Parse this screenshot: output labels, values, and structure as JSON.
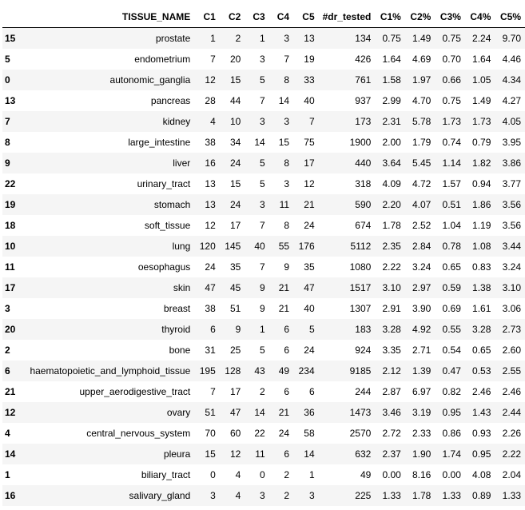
{
  "columns": [
    "TISSUE_NAME",
    "C1",
    "C2",
    "C3",
    "C4",
    "C5",
    "#dr_tested",
    "C1%",
    "C2%",
    "C3%",
    "C4%",
    "C5%"
  ],
  "rows": [
    {
      "index": "15",
      "cells": [
        "prostate",
        "1",
        "2",
        "1",
        "3",
        "13",
        "134",
        "0.75",
        "1.49",
        "0.75",
        "2.24",
        "9.70"
      ]
    },
    {
      "index": "5",
      "cells": [
        "endometrium",
        "7",
        "20",
        "3",
        "7",
        "19",
        "426",
        "1.64",
        "4.69",
        "0.70",
        "1.64",
        "4.46"
      ]
    },
    {
      "index": "0",
      "cells": [
        "autonomic_ganglia",
        "12",
        "15",
        "5",
        "8",
        "33",
        "761",
        "1.58",
        "1.97",
        "0.66",
        "1.05",
        "4.34"
      ]
    },
    {
      "index": "13",
      "cells": [
        "pancreas",
        "28",
        "44",
        "7",
        "14",
        "40",
        "937",
        "2.99",
        "4.70",
        "0.75",
        "1.49",
        "4.27"
      ]
    },
    {
      "index": "7",
      "cells": [
        "kidney",
        "4",
        "10",
        "3",
        "3",
        "7",
        "173",
        "2.31",
        "5.78",
        "1.73",
        "1.73",
        "4.05"
      ]
    },
    {
      "index": "8",
      "cells": [
        "large_intestine",
        "38",
        "34",
        "14",
        "15",
        "75",
        "1900",
        "2.00",
        "1.79",
        "0.74",
        "0.79",
        "3.95"
      ]
    },
    {
      "index": "9",
      "cells": [
        "liver",
        "16",
        "24",
        "5",
        "8",
        "17",
        "440",
        "3.64",
        "5.45",
        "1.14",
        "1.82",
        "3.86"
      ]
    },
    {
      "index": "22",
      "cells": [
        "urinary_tract",
        "13",
        "15",
        "5",
        "3",
        "12",
        "318",
        "4.09",
        "4.72",
        "1.57",
        "0.94",
        "3.77"
      ]
    },
    {
      "index": "19",
      "cells": [
        "stomach",
        "13",
        "24",
        "3",
        "11",
        "21",
        "590",
        "2.20",
        "4.07",
        "0.51",
        "1.86",
        "3.56"
      ]
    },
    {
      "index": "18",
      "cells": [
        "soft_tissue",
        "12",
        "17",
        "7",
        "8",
        "24",
        "674",
        "1.78",
        "2.52",
        "1.04",
        "1.19",
        "3.56"
      ]
    },
    {
      "index": "10",
      "cells": [
        "lung",
        "120",
        "145",
        "40",
        "55",
        "176",
        "5112",
        "2.35",
        "2.84",
        "0.78",
        "1.08",
        "3.44"
      ]
    },
    {
      "index": "11",
      "cells": [
        "oesophagus",
        "24",
        "35",
        "7",
        "9",
        "35",
        "1080",
        "2.22",
        "3.24",
        "0.65",
        "0.83",
        "3.24"
      ]
    },
    {
      "index": "17",
      "cells": [
        "skin",
        "47",
        "45",
        "9",
        "21",
        "47",
        "1517",
        "3.10",
        "2.97",
        "0.59",
        "1.38",
        "3.10"
      ]
    },
    {
      "index": "3",
      "cells": [
        "breast",
        "38",
        "51",
        "9",
        "21",
        "40",
        "1307",
        "2.91",
        "3.90",
        "0.69",
        "1.61",
        "3.06"
      ]
    },
    {
      "index": "20",
      "cells": [
        "thyroid",
        "6",
        "9",
        "1",
        "6",
        "5",
        "183",
        "3.28",
        "4.92",
        "0.55",
        "3.28",
        "2.73"
      ]
    },
    {
      "index": "2",
      "cells": [
        "bone",
        "31",
        "25",
        "5",
        "6",
        "24",
        "924",
        "3.35",
        "2.71",
        "0.54",
        "0.65",
        "2.60"
      ]
    },
    {
      "index": "6",
      "cells": [
        "haematopoietic_and_lymphoid_tissue",
        "195",
        "128",
        "43",
        "49",
        "234",
        "9185",
        "2.12",
        "1.39",
        "0.47",
        "0.53",
        "2.55"
      ]
    },
    {
      "index": "21",
      "cells": [
        "upper_aerodigestive_tract",
        "7",
        "17",
        "2",
        "6",
        "6",
        "244",
        "2.87",
        "6.97",
        "0.82",
        "2.46",
        "2.46"
      ]
    },
    {
      "index": "12",
      "cells": [
        "ovary",
        "51",
        "47",
        "14",
        "21",
        "36",
        "1473",
        "3.46",
        "3.19",
        "0.95",
        "1.43",
        "2.44"
      ]
    },
    {
      "index": "4",
      "cells": [
        "central_nervous_system",
        "70",
        "60",
        "22",
        "24",
        "58",
        "2570",
        "2.72",
        "2.33",
        "0.86",
        "0.93",
        "2.26"
      ]
    },
    {
      "index": "14",
      "cells": [
        "pleura",
        "15",
        "12",
        "11",
        "6",
        "14",
        "632",
        "2.37",
        "1.90",
        "1.74",
        "0.95",
        "2.22"
      ]
    },
    {
      "index": "1",
      "cells": [
        "biliary_tract",
        "0",
        "4",
        "0",
        "2",
        "1",
        "49",
        "0.00",
        "8.16",
        "0.00",
        "4.08",
        "2.04"
      ]
    },
    {
      "index": "16",
      "cells": [
        "salivary_gland",
        "3",
        "4",
        "3",
        "2",
        "3",
        "225",
        "1.33",
        "1.78",
        "1.33",
        "0.89",
        "1.33"
      ]
    }
  ]
}
